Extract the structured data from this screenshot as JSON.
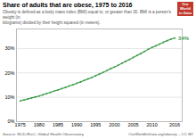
{
  "chart_data": {
    "type": "line",
    "title": "Share of adults that are obese, 1975 to 2016",
    "subtitle": "Obesity is defined as a body mass index (BMI) equal to, or greater than 30. BMI is a person's weight (in\nkilograms) divided by their height squared (in meters).",
    "source": "Source: NCD-RisC, Global Health Observatory",
    "credit": "OurWorldInData.org/obesity – CC BY",
    "logo": {
      "text": "Our\nWorld\nin Data",
      "color": "#c0392b"
    },
    "x": [
      1975,
      1976,
      1977,
      1978,
      1979,
      1980,
      1981,
      1982,
      1983,
      1984,
      1985,
      1986,
      1987,
      1988,
      1989,
      1990,
      1991,
      1992,
      1993,
      1994,
      1995,
      1996,
      1997,
      1998,
      1999,
      2000,
      2001,
      2002,
      2003,
      2004,
      2005,
      2006,
      2007,
      2008,
      2009,
      2010,
      2011,
      2012,
      2013,
      2014,
      2015,
      2016
    ],
    "values": [
      8.5,
      8.9,
      9.3,
      9.7,
      10.1,
      10.5,
      11.0,
      11.5,
      12.0,
      12.5,
      13.0,
      13.5,
      14.0,
      14.6,
      15.1,
      15.7,
      16.3,
      16.9,
      17.5,
      18.1,
      18.8,
      19.5,
      20.2,
      20.9,
      21.7,
      22.4,
      23.1,
      23.9,
      24.7,
      25.5,
      26.3,
      27.1,
      27.9,
      28.8,
      29.7,
      30.4,
      31.1,
      31.8,
      32.5,
      33.2,
      33.8,
      34.3
    ],
    "color": "#3f9e4d",
    "marker": "circle",
    "xlim": [
      1974,
      2018
    ],
    "xticks": [
      1975,
      1980,
      1985,
      1990,
      1995,
      2000,
      2005,
      2010,
      2016
    ],
    "ylim": [
      0,
      38
    ],
    "yticks": [
      {
        "value": 0,
        "label": "0%"
      },
      {
        "value": 10,
        "label": "10%"
      },
      {
        "value": 20,
        "label": "20%"
      },
      {
        "value": 30,
        "label": "30%"
      }
    ],
    "grid": true,
    "annotations": [
      {
        "text": "34%",
        "x": 2016,
        "y": 34.3
      }
    ]
  }
}
